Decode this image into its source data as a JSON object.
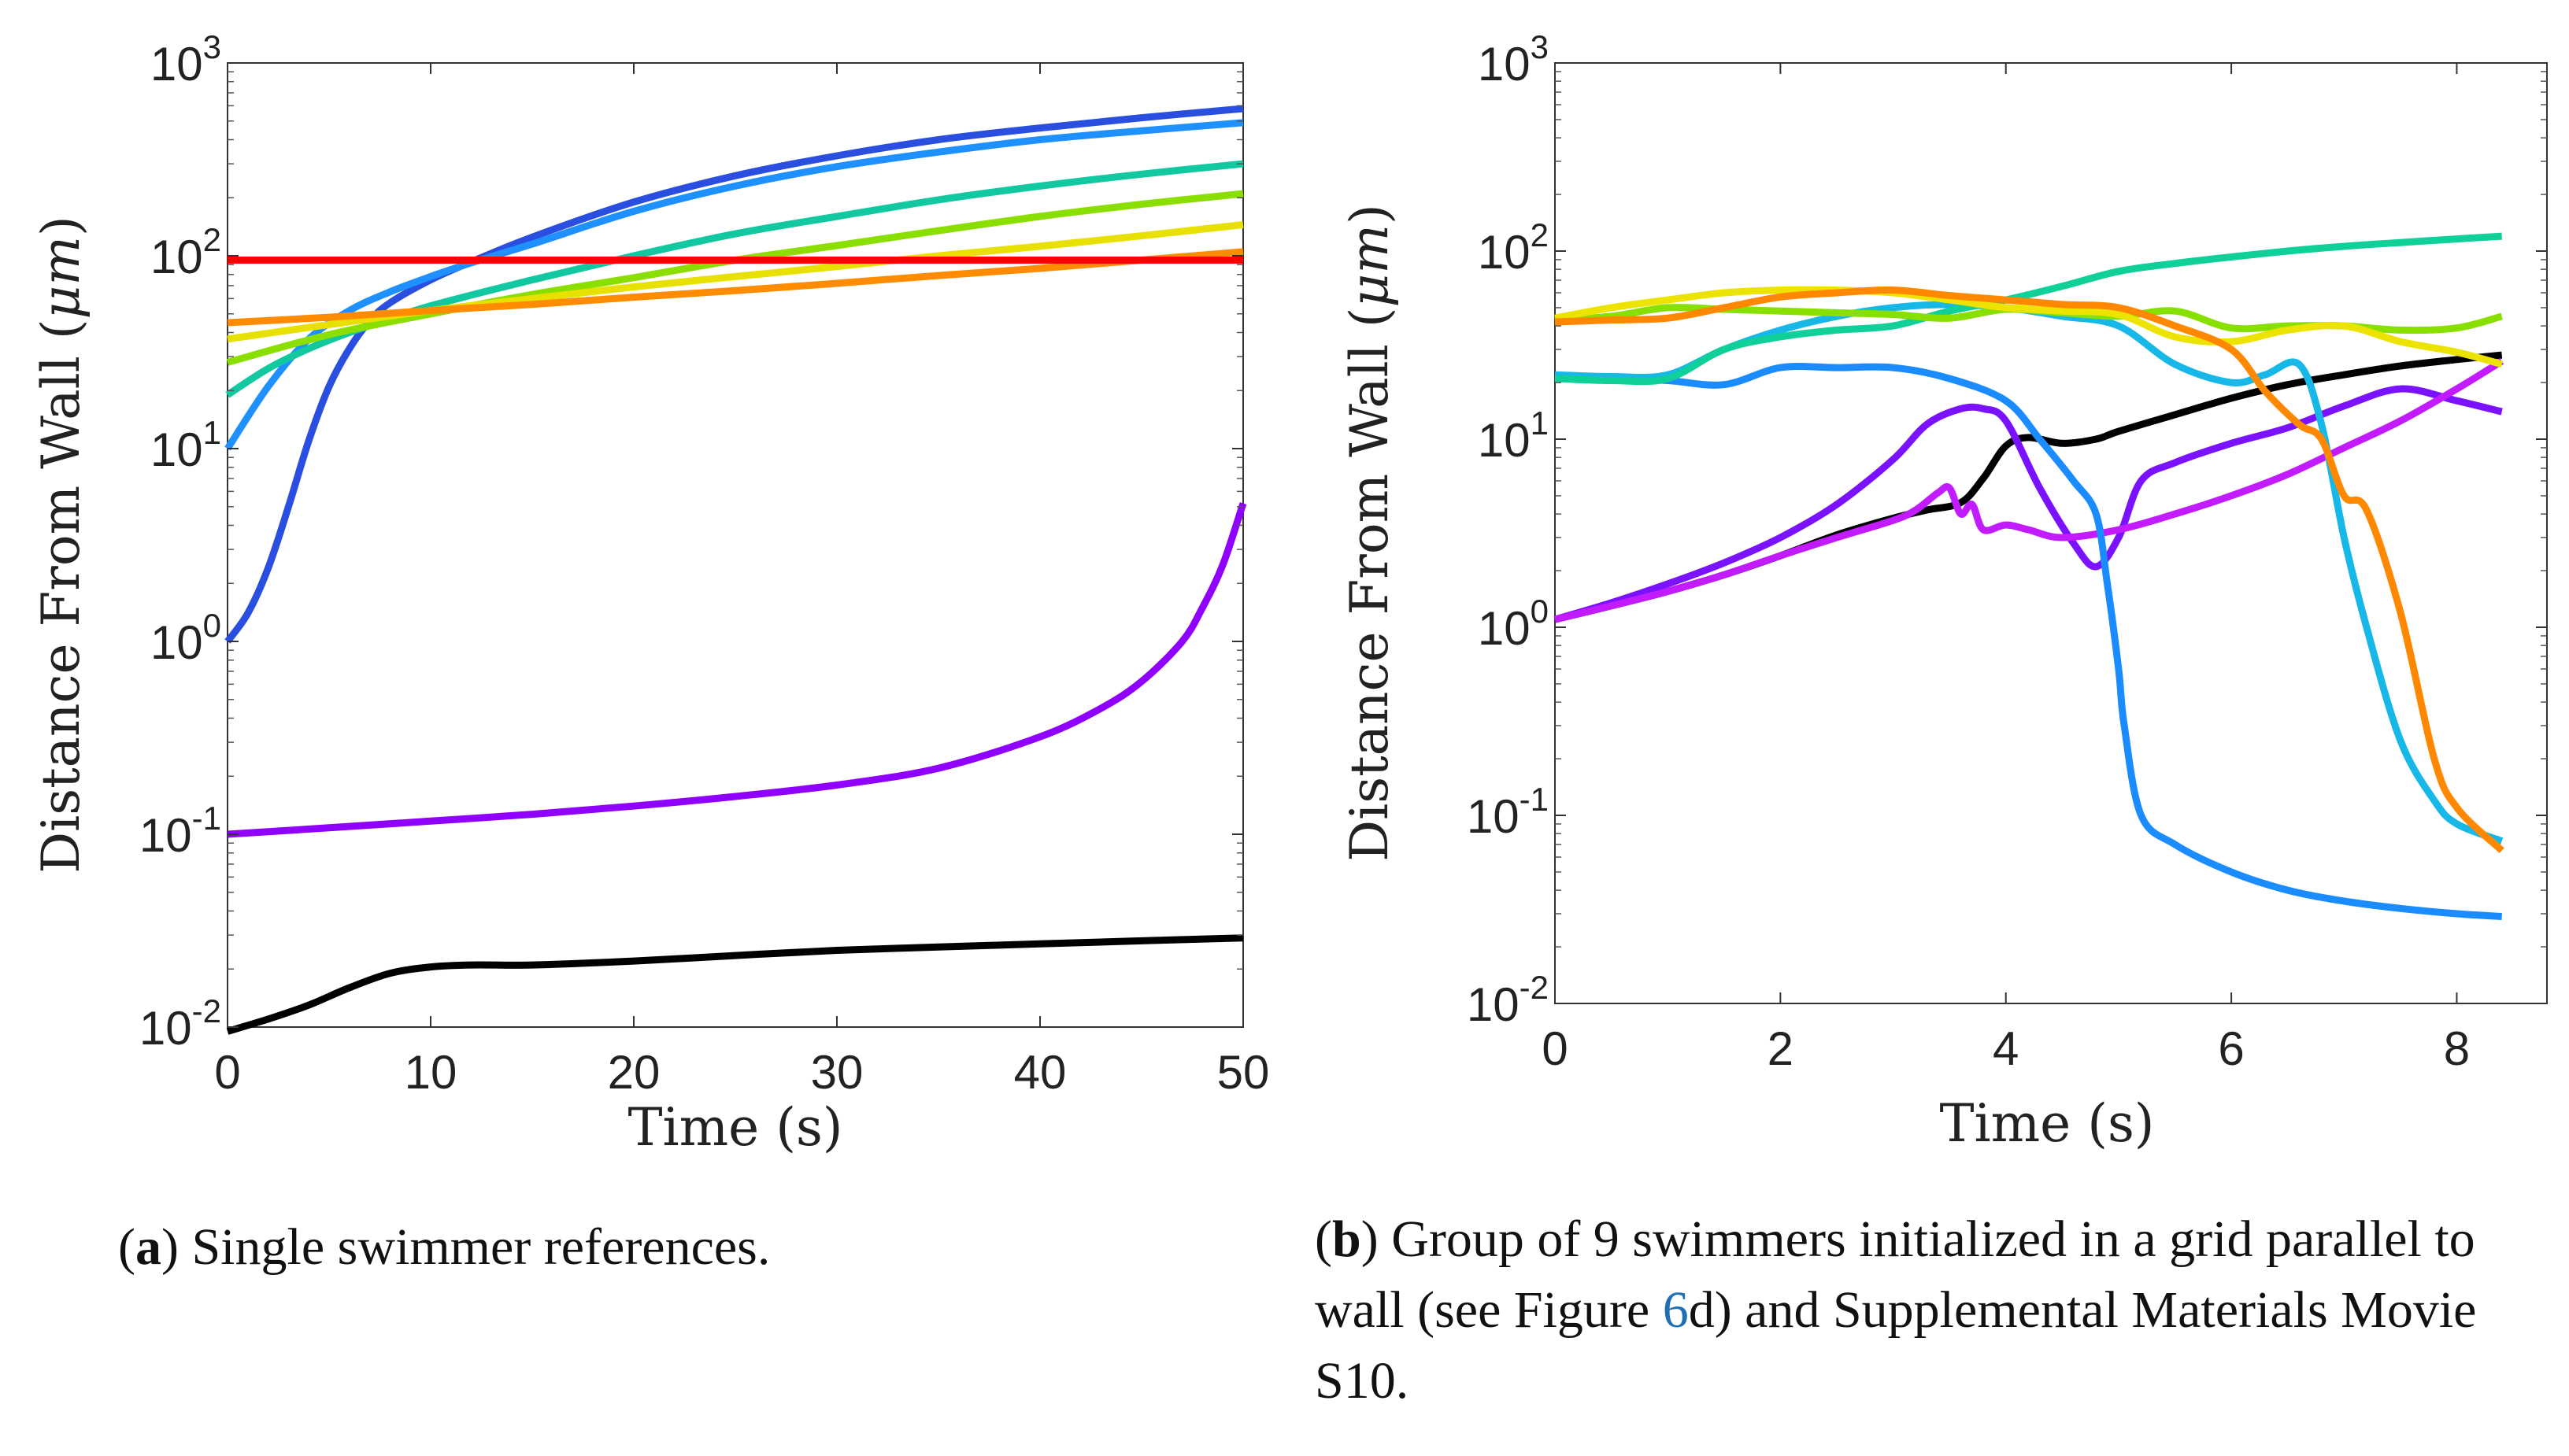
{
  "figure": {
    "caption_a": {
      "label": "a",
      "text": "Single swimmer references."
    },
    "caption_b": {
      "label": "b",
      "text_before_ref": "Group of 9 swimmers initialized in a grid parallel to wall (see Figure ",
      "ref_number": "6",
      "text_after_ref": "d) and Supplemental Materials Movie S10."
    }
  },
  "chart_data": [
    {
      "type": "line",
      "id": "a",
      "title": "",
      "xlabel": "Time (s)",
      "ylabel_prefix": "Distance From Wall (",
      "ylabel_unit": "μm",
      "ylabel_suffix": ")",
      "xlim": [
        0,
        50
      ],
      "ylim": [
        0.01,
        1000
      ],
      "yscale": "log",
      "xticks": [
        0,
        10,
        20,
        30,
        40,
        50
      ],
      "yticks": [
        {
          "base": "10",
          "exp": "-2"
        },
        {
          "base": "10",
          "exp": "-1"
        },
        {
          "base": "10",
          "exp": "0"
        },
        {
          "base": "10",
          "exp": "1"
        },
        {
          "base": "10",
          "exp": "2"
        },
        {
          "base": "10",
          "exp": "3"
        }
      ],
      "series": [
        {
          "name": "black",
          "color": "#000000",
          "x": [
            0,
            2,
            4,
            6,
            8,
            10,
            12,
            15,
            20,
            25,
            30,
            35,
            40,
            45,
            50
          ],
          "y": [
            0.0095,
            0.011,
            0.013,
            0.016,
            0.019,
            0.0205,
            0.021,
            0.021,
            0.022,
            0.0235,
            0.025,
            0.026,
            0.027,
            0.028,
            0.029
          ]
        },
        {
          "name": "violet",
          "color": "#8f00ff",
          "x": [
            0,
            5,
            10,
            15,
            20,
            25,
            30,
            35,
            40,
            43,
            45,
            47,
            48,
            49,
            50
          ],
          "y": [
            0.1,
            0.108,
            0.117,
            0.127,
            0.14,
            0.157,
            0.18,
            0.22,
            0.32,
            0.45,
            0.62,
            1.0,
            1.5,
            2.5,
            5.2
          ]
        },
        {
          "name": "royal blue",
          "color": "#2a4fe0",
          "x": [
            0,
            1,
            2,
            3,
            4,
            5,
            6,
            7,
            8,
            10,
            12,
            15,
            20,
            25,
            30,
            35,
            40,
            45,
            50
          ],
          "y": [
            1.0,
            1.4,
            2.4,
            5,
            11,
            21,
            33,
            46,
            57,
            75,
            93,
            125,
            190,
            260,
            330,
            400,
            460,
            520,
            580
          ]
        },
        {
          "name": "azure",
          "color": "#1e90ff",
          "x": [
            0,
            2,
            4,
            6,
            8,
            10,
            12,
            15,
            20,
            25,
            30,
            35,
            40,
            45,
            50
          ],
          "y": [
            10,
            21,
            37,
            52,
            65,
            78,
            92,
            115,
            170,
            230,
            290,
            345,
            400,
            445,
            490
          ]
        },
        {
          "name": "teal",
          "color": "#11c8a0",
          "x": [
            0,
            2,
            4,
            6,
            8,
            10,
            15,
            20,
            25,
            30,
            35,
            40,
            45,
            50
          ],
          "y": [
            19,
            26,
            33,
            40,
            47,
            55,
            75,
            100,
            130,
            160,
            195,
            230,
            265,
            300
          ]
        },
        {
          "name": "yellow-green",
          "color": "#8ade00",
          "x": [
            0,
            5,
            10,
            15,
            20,
            25,
            30,
            35,
            40,
            45,
            50
          ],
          "y": [
            28,
            39,
            50,
            63,
            77,
            95,
            113,
            135,
            160,
            185,
            210
          ]
        },
        {
          "name": "yellow",
          "color": "#e8e000",
          "x": [
            0,
            5,
            10,
            15,
            20,
            25,
            30,
            35,
            40,
            45,
            50
          ],
          "y": [
            37,
            44,
            52,
            60,
            69,
            78,
            88,
            100,
            112,
            127,
            145
          ]
        },
        {
          "name": "orange",
          "color": "#ff8c00",
          "x": [
            0,
            5,
            10,
            15,
            20,
            25,
            30,
            35,
            40,
            45,
            50
          ],
          "y": [
            45,
            48,
            52,
            56,
            61,
            66,
            72,
            79,
            86,
            95,
            105
          ]
        },
        {
          "name": "red",
          "color": "#ff0000",
          "x": [
            0,
            50
          ],
          "y": [
            95,
            95
          ]
        }
      ]
    },
    {
      "type": "line",
      "id": "b",
      "title": "",
      "xlabel": "Time (s)",
      "ylabel_prefix": "Distance From Wall (",
      "ylabel_unit": "μm",
      "ylabel_suffix": ")",
      "xlim": [
        0,
        8.8
      ],
      "ylim": [
        0.01,
        1000
      ],
      "yscale": "log",
      "xticks": [
        0,
        2,
        4,
        6,
        8
      ],
      "yticks": [
        {
          "base": "10",
          "exp": "-2"
        },
        {
          "base": "10",
          "exp": "-1"
        },
        {
          "base": "10",
          "exp": "0"
        },
        {
          "base": "10",
          "exp": "1"
        },
        {
          "base": "10",
          "exp": "2"
        },
        {
          "base": "10",
          "exp": "3"
        }
      ],
      "series": [
        {
          "name": "black",
          "color": "#000000",
          "x": [
            0,
            0.5,
            1,
            1.5,
            2,
            2.5,
            3,
            3.3,
            3.6,
            3.8,
            4.0,
            4.2,
            4.5,
            4.8,
            5.0,
            5.5,
            6.0,
            6.5,
            7.0,
            7.5,
            8.0,
            8.4
          ],
          "y": [
            1.1,
            1.3,
            1.55,
            1.9,
            2.4,
            3.1,
            3.8,
            4.2,
            4.6,
            6.2,
            9.2,
            10.2,
            9.5,
            10.0,
            11.0,
            13.5,
            16.5,
            19.5,
            22,
            24.5,
            26.5,
            28
          ]
        },
        {
          "name": "purple-1",
          "color": "#7a12ff",
          "x": [
            0,
            0.5,
            1,
            1.5,
            2,
            2.5,
            3,
            3.3,
            3.6,
            3.8,
            4.0,
            4.3,
            4.6,
            4.8,
            5.0,
            5.2,
            5.5,
            6.0,
            6.5,
            7.0,
            7.5,
            8.0,
            8.4
          ],
          "y": [
            1.1,
            1.35,
            1.7,
            2.2,
            3.0,
            4.5,
            7.8,
            12,
            14.5,
            14.5,
            12.5,
            5.5,
            2.8,
            2.1,
            3.0,
            6.0,
            7.5,
            9.5,
            11.5,
            15,
            18.5,
            16,
            14
          ]
        },
        {
          "name": "magenta-violet",
          "color": "#c21bff",
          "x": [
            0,
            0.5,
            1,
            1.5,
            2,
            2.5,
            3,
            3.2,
            3.4,
            3.5,
            3.6,
            3.7,
            3.8,
            4.0,
            4.2,
            4.5,
            5.0,
            5.5,
            6.0,
            6.5,
            7.0,
            7.5,
            8.0,
            8.4
          ],
          "y": [
            1.1,
            1.3,
            1.55,
            1.9,
            2.4,
            3.0,
            3.7,
            4.2,
            5.2,
            5.5,
            4.0,
            4.5,
            3.3,
            3.5,
            3.3,
            3.0,
            3.3,
            4.0,
            5.0,
            6.5,
            9.0,
            12.5,
            18.5,
            26
          ]
        },
        {
          "name": "blue",
          "color": "#1a8cff",
          "x": [
            0,
            0.5,
            1,
            1.5,
            2,
            2.5,
            3,
            3.5,
            4.0,
            4.3,
            4.6,
            4.8,
            4.9,
            5.0,
            5.05,
            5.2,
            5.5,
            6.0,
            6.5,
            7.0,
            7.5,
            8.0,
            8.4
          ],
          "y": [
            21,
            21,
            20.5,
            19.5,
            24,
            24,
            24,
            21,
            16,
            10,
            6,
            4,
            1.7,
            0.6,
            0.3,
            0.1,
            0.07,
            0.05,
            0.04,
            0.035,
            0.032,
            0.03,
            0.029
          ]
        },
        {
          "name": "sky blue",
          "color": "#17b8e8",
          "x": [
            0,
            0.5,
            1,
            1.5,
            2,
            2.5,
            3,
            3.5,
            4,
            4.5,
            5,
            5.5,
            6.0,
            6.3,
            6.6,
            6.8,
            7.0,
            7.2,
            7.5,
            7.8,
            8.0,
            8.4
          ],
          "y": [
            22,
            21.5,
            22,
            30,
            38,
            45,
            50,
            52,
            50,
            45,
            40,
            25,
            20,
            22,
            25,
            12,
            3,
            1.0,
            0.25,
            0.12,
            0.09,
            0.073
          ]
        },
        {
          "name": "green-teal",
          "color": "#10d09a",
          "x": [
            0,
            0.5,
            1,
            1.5,
            2,
            2.5,
            3,
            3.5,
            4,
            4.5,
            5,
            5.5,
            6,
            6.5,
            7,
            7.5,
            8,
            8.4
          ],
          "y": [
            21,
            20.5,
            21,
            30,
            35,
            38,
            40,
            48,
            55,
            65,
            78,
            86,
            93,
            100,
            106,
            111,
            116,
            120
          ]
        },
        {
          "name": "yellow-green",
          "color": "#88e000",
          "x": [
            0,
            0.5,
            1,
            1.5,
            2,
            2.5,
            3,
            3.5,
            4,
            4.5,
            5,
            5.5,
            6,
            6.5,
            7,
            7.5,
            8,
            8.4
          ],
          "y": [
            43,
            45,
            50,
            49,
            48,
            47,
            46,
            44,
            49,
            47,
            45,
            48,
            39,
            40,
            40,
            38,
            39,
            45
          ]
        },
        {
          "name": "yellow",
          "color": "#ece400",
          "x": [
            0,
            0.5,
            1,
            1.5,
            2,
            2.5,
            3,
            3.5,
            4,
            4.5,
            5,
            5.5,
            6,
            6.5,
            7,
            7.5,
            8,
            8.4
          ],
          "y": [
            44,
            50,
            55,
            60,
            62,
            62,
            60,
            55,
            50,
            48,
            46,
            35,
            33,
            38,
            40,
            33,
            29,
            25
          ]
        },
        {
          "name": "orange",
          "color": "#ff8800",
          "x": [
            0,
            0.5,
            1,
            1.5,
            2,
            2.5,
            3,
            3.5,
            4,
            4.5,
            5,
            5.5,
            6,
            6.3,
            6.6,
            6.8,
            7.0,
            7.2,
            7.5,
            7.8,
            8.0,
            8.4
          ],
          "y": [
            42,
            43,
            44,
            50,
            57,
            60,
            62,
            58,
            55,
            52,
            50,
            40,
            30,
            18,
            12,
            10,
            5,
            4.2,
            1.2,
            0.2,
            0.11,
            0.065
          ]
        }
      ]
    }
  ]
}
